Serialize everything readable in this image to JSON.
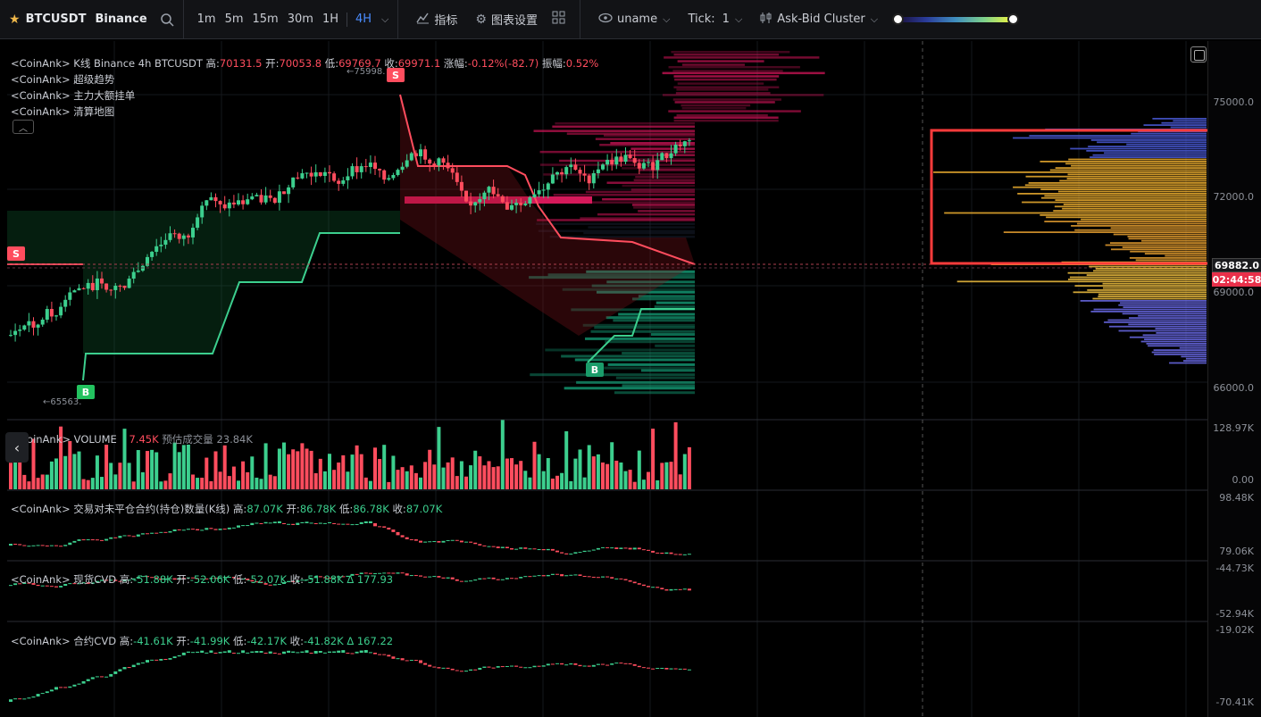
{
  "toolbar": {
    "symbol": "BTCUSDT",
    "exchange": "Binance",
    "timeframes": [
      "1m",
      "5m",
      "15m",
      "30m",
      "1H",
      "4H"
    ],
    "active_timeframe": "4H",
    "indicators_label": "指标",
    "chart_settings_label": "图表设置",
    "user_label": "uname",
    "tick_label": "Tick:",
    "tick_value": "1",
    "cluster_label": "Ask-Bid Cluster"
  },
  "main_legend": {
    "line1_prefix": "<CoinAnk> K线  Binance 4h BTCUSDT",
    "high_label": "高:",
    "high": "70131.5",
    "open_label": "开:",
    "open": "70053.8",
    "low_label": "低:",
    "low": "69769.7",
    "close_label": "收:",
    "close": "69971.1",
    "change_label": "涨幅:",
    "change": "-0.12%(-82.7)",
    "amp_label": "振幅:",
    "amp": "0.52%",
    "line2": "<CoinAnk> 超级趋势",
    "line3": "<CoinAnk> 主力大额挂单",
    "line4": "<CoinAnk> 清算地图"
  },
  "price_axis": {
    "ticks": [
      "75000.0",
      "72000.0",
      "69000.0",
      "66000.0"
    ],
    "last_price": "69882.0",
    "countdown": "02:44:58",
    "high_marker": "75998.",
    "low_marker": "65563.",
    "sell_marker": "S",
    "buy_marker": "B"
  },
  "volume_pane": {
    "legend_name": "CoinAnk> VOLUME",
    "value": "7.45K",
    "est_label": "预估成交量",
    "est_value": "23.84K",
    "axis_top": "128.97K",
    "axis_bottom": "0.00"
  },
  "oi_pane": {
    "legend_name": "<CoinAnk> 交易对未平仓合约(持仓)数量(K线)",
    "high_label": "高:",
    "high": "87.07K",
    "open_label": "开:",
    "open": "86.78K",
    "low_label": "低:",
    "low": "86.78K",
    "close_label": "收:",
    "close": "87.07K",
    "axis_top": "98.48K",
    "axis_bottom": "79.06K"
  },
  "spot_cvd_pane": {
    "legend_name": "<CoinAnk> 现货CVD",
    "high_label": "高:",
    "high": "-51.88K",
    "open_label": "开:",
    "open": "-52.06K",
    "low_label": "低:",
    "low": "-52.07K",
    "close_label": "收:",
    "close": "-51.88K",
    "delta_label": "Δ",
    "delta": "177.93",
    "axis_top": "-44.73K",
    "axis_bottom": "-52.94K"
  },
  "fut_cvd_pane": {
    "legend_name": "<CoinAnk> 合约CVD",
    "high_label": "高:",
    "high": "-41.61K",
    "open_label": "开:",
    "open": "-41.99K",
    "low_label": "低:",
    "low": "-42.17K",
    "close_label": "收:",
    "close": "-41.82K",
    "delta_label": "Δ",
    "delta": "167.22",
    "axis_top": "-19.02K",
    "axis_bottom": "-70.41K"
  },
  "colors": {
    "up": "#3ccf8e",
    "down": "#ff4d5e",
    "accent": "#4a8cff",
    "highlight_box": "#ff3b3b"
  }
}
